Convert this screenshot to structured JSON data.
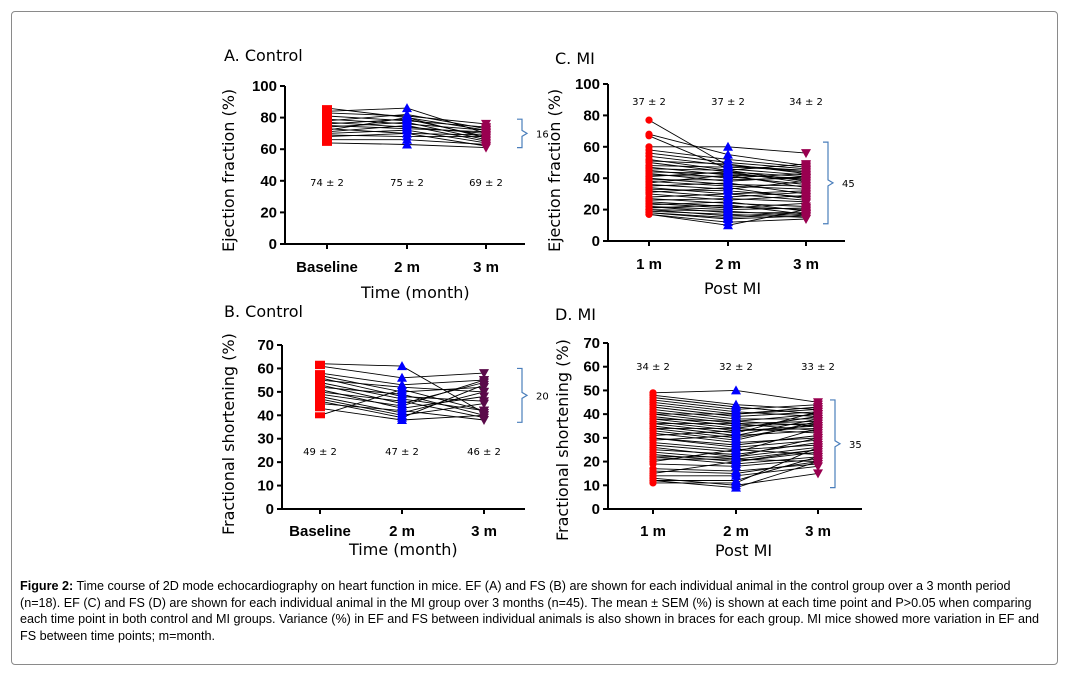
{
  "caption": {
    "label": "Figure 2:",
    "text": " Time course of 2D mode echocardiography on heart function in mice. EF (A) and FS (B) are shown for each individual animal in the control group over a 3 month period (n=18). EF (C) and FS (D) are shown for each individual animal in the MI group over 3 months (n=45). The mean ± SEM (%) is shown at each time point and P>0.05 when comparing each time point in both control and MI groups. Variance (%) in EF and FS between individual animals is also shown in braces for each group. MI mice showed more variation in EF and FS between time points; m=month."
  },
  "colors": {
    "t1": "#ff0000",
    "t2": "#0000ff",
    "t3_a": "#990050",
    "t3_b": "#5a0a4a",
    "brace": "#4a7ebb",
    "line": "#000000"
  },
  "chart_data": [
    {
      "id": "A",
      "type": "line",
      "title": "A. Control",
      "ylabel": "Ejection fraction (%)",
      "xlabel": "Time (month)",
      "categories": [
        "Baseline",
        "2 m",
        "3 m"
      ],
      "ylim": [
        0,
        100
      ],
      "yticks": [
        0,
        20,
        40,
        60,
        80,
        100
      ],
      "n": 18,
      "means": [
        "74 ± 2",
        "75 ± 2",
        "69 ± 2"
      ],
      "mean_position": "below",
      "variance": "16",
      "variance_range": [
        61,
        79
      ],
      "series": [
        [
          86,
          80,
          72
        ],
        [
          84,
          86,
          70
        ],
        [
          83,
          81,
          76
        ],
        [
          81,
          78,
          74
        ],
        [
          79,
          76,
          72
        ],
        [
          78,
          82,
          73
        ],
        [
          77,
          74,
          70
        ],
        [
          76,
          79,
          68
        ],
        [
          75,
          73,
          71
        ],
        [
          74,
          77,
          66
        ],
        [
          73,
          70,
          69
        ],
        [
          72,
          80,
          67
        ],
        [
          71,
          75,
          65
        ],
        [
          70,
          72,
          64
        ],
        [
          69,
          68,
          68
        ],
        [
          68,
          70,
          62
        ],
        [
          66,
          66,
          63
        ],
        [
          64,
          63,
          61
        ]
      ]
    },
    {
      "id": "C",
      "type": "line",
      "title": "C. MI",
      "ylabel": "Ejection fraction (%)",
      "xlabel": "Post MI",
      "categories": [
        "1 m",
        "2 m",
        "3 m"
      ],
      "ylim": [
        0,
        100
      ],
      "yticks": [
        0,
        20,
        40,
        60,
        80,
        100
      ],
      "n": 45,
      "means": [
        "37 ± 2",
        "37 ± 2",
        "34 ± 2"
      ],
      "mean_position": "above",
      "variance": "45",
      "variance_range": [
        11,
        63
      ],
      "series": [
        [
          77,
          48,
          45
        ],
        [
          68,
          55,
          48
        ],
        [
          67,
          46,
          42
        ],
        [
          60,
          60,
          56
        ],
        [
          58,
          52,
          47
        ],
        [
          56,
          50,
          46
        ],
        [
          54,
          48,
          44
        ],
        [
          52,
          45,
          49
        ],
        [
          51,
          49,
          43
        ],
        [
          50,
          44,
          41
        ],
        [
          48,
          47,
          45
        ],
        [
          47,
          42,
          40
        ],
        [
          46,
          45,
          38
        ],
        [
          45,
          40,
          43
        ],
        [
          44,
          43,
          39
        ],
        [
          43,
          38,
          41
        ],
        [
          42,
          41,
          36
        ],
        [
          41,
          44,
          37
        ],
        [
          40,
          36,
          35
        ],
        [
          39,
          39,
          40
        ],
        [
          38,
          35,
          33
        ],
        [
          37,
          42,
          34
        ],
        [
          36,
          33,
          38
        ],
        [
          35,
          37,
          30
        ],
        [
          34,
          30,
          32
        ],
        [
          33,
          32,
          28
        ],
        [
          32,
          28,
          31
        ],
        [
          31,
          34,
          27
        ],
        [
          30,
          26,
          29
        ],
        [
          28,
          30,
          26
        ],
        [
          27,
          24,
          22
        ],
        [
          26,
          27,
          25
        ],
        [
          25,
          22,
          20
        ],
        [
          24,
          21,
          24
        ],
        [
          23,
          25,
          19
        ],
        [
          22,
          20,
          21
        ],
        [
          22,
          18,
          18
        ],
        [
          21,
          23,
          17
        ],
        [
          20,
          19,
          16
        ],
        [
          20,
          16,
          18
        ],
        [
          19,
          17,
          15
        ],
        [
          18,
          15,
          17
        ],
        [
          18,
          14,
          16
        ],
        [
          17,
          12,
          14
        ],
        [
          17,
          10,
          20
        ]
      ]
    },
    {
      "id": "B",
      "type": "line",
      "title": "B. Control",
      "ylabel": "Fractional shortening (%)",
      "xlabel": "Time (month)",
      "categories": [
        "Baseline",
        "2 m",
        "3 m"
      ],
      "ylim": [
        0,
        70
      ],
      "yticks": [
        0,
        10,
        20,
        30,
        40,
        50,
        60,
        70
      ],
      "n": 18,
      "means": [
        "49 ± 2",
        "47 ± 2",
        "46 ± 2"
      ],
      "mean_position": "below",
      "variance": "20",
      "variance_range": [
        37,
        60
      ],
      "series": [
        [
          62,
          61,
          41
        ],
        [
          61,
          56,
          58
        ],
        [
          58,
          53,
          55
        ],
        [
          57,
          50,
          52
        ],
        [
          56,
          48,
          46
        ],
        [
          55,
          52,
          50
        ],
        [
          54,
          47,
          42
        ],
        [
          53,
          45,
          54
        ],
        [
          52,
          49,
          40
        ],
        [
          51,
          43,
          48
        ],
        [
          50,
          46,
          39
        ],
        [
          49,
          44,
          55
        ],
        [
          48,
          41,
          50
        ],
        [
          47,
          40,
          45
        ],
        [
          46,
          39,
          53
        ],
        [
          45,
          42,
          38
        ],
        [
          43,
          38,
          40
        ],
        [
          40,
          51,
          42
        ]
      ]
    },
    {
      "id": "D",
      "type": "line",
      "title": "D. MI",
      "ylabel": "Fractional shortening (%)",
      "xlabel": "Post MI",
      "categories": [
        "1 m",
        "2 m",
        "3 m"
      ],
      "ylim": [
        0,
        70
      ],
      "yticks": [
        0,
        10,
        20,
        30,
        40,
        50,
        60,
        70
      ],
      "n": 45,
      "means": [
        "34 ± 2",
        "32 ± 2",
        "33 ± 2"
      ],
      "mean_position": "above",
      "variance": "35",
      "variance_range": [
        9,
        46
      ],
      "series": [
        [
          49,
          50,
          45
        ],
        [
          48,
          44,
          42
        ],
        [
          47,
          43,
          40
        ],
        [
          46,
          42,
          44
        ],
        [
          45,
          41,
          39
        ],
        [
          44,
          40,
          43
        ],
        [
          43,
          39,
          41
        ],
        [
          42,
          38,
          38
        ],
        [
          41,
          37,
          40
        ],
        [
          40,
          36,
          37
        ],
        [
          40,
          40,
          42
        ],
        [
          39,
          35,
          36
        ],
        [
          38,
          34,
          39
        ],
        [
          38,
          37,
          35
        ],
        [
          37,
          33,
          34
        ],
        [
          36,
          32,
          41
        ],
        [
          36,
          36,
          33
        ],
        [
          35,
          31,
          38
        ],
        [
          34,
          30,
          36
        ],
        [
          34,
          34,
          32
        ],
        [
          33,
          29,
          37
        ],
        [
          32,
          28,
          30
        ],
        [
          31,
          33,
          35
        ],
        [
          30,
          27,
          31
        ],
        [
          30,
          26,
          29
        ],
        [
          29,
          31,
          33
        ],
        [
          28,
          25,
          27
        ],
        [
          27,
          24,
          34
        ],
        [
          26,
          22,
          26
        ],
        [
          25,
          23,
          28
        ],
        [
          24,
          21,
          25
        ],
        [
          23,
          20,
          24
        ],
        [
          22,
          22,
          30
        ],
        [
          22,
          19,
          22
        ],
        [
          21,
          21,
          20
        ],
        [
          20,
          25,
          23
        ],
        [
          19,
          18,
          21
        ],
        [
          17,
          16,
          19
        ],
        [
          16,
          15,
          20
        ],
        [
          15,
          20,
          25
        ],
        [
          14,
          14,
          18
        ],
        [
          13,
          10,
          15
        ],
        [
          12,
          12,
          22
        ],
        [
          12,
          9,
          20
        ],
        [
          11,
          11,
          26
        ]
      ]
    }
  ]
}
